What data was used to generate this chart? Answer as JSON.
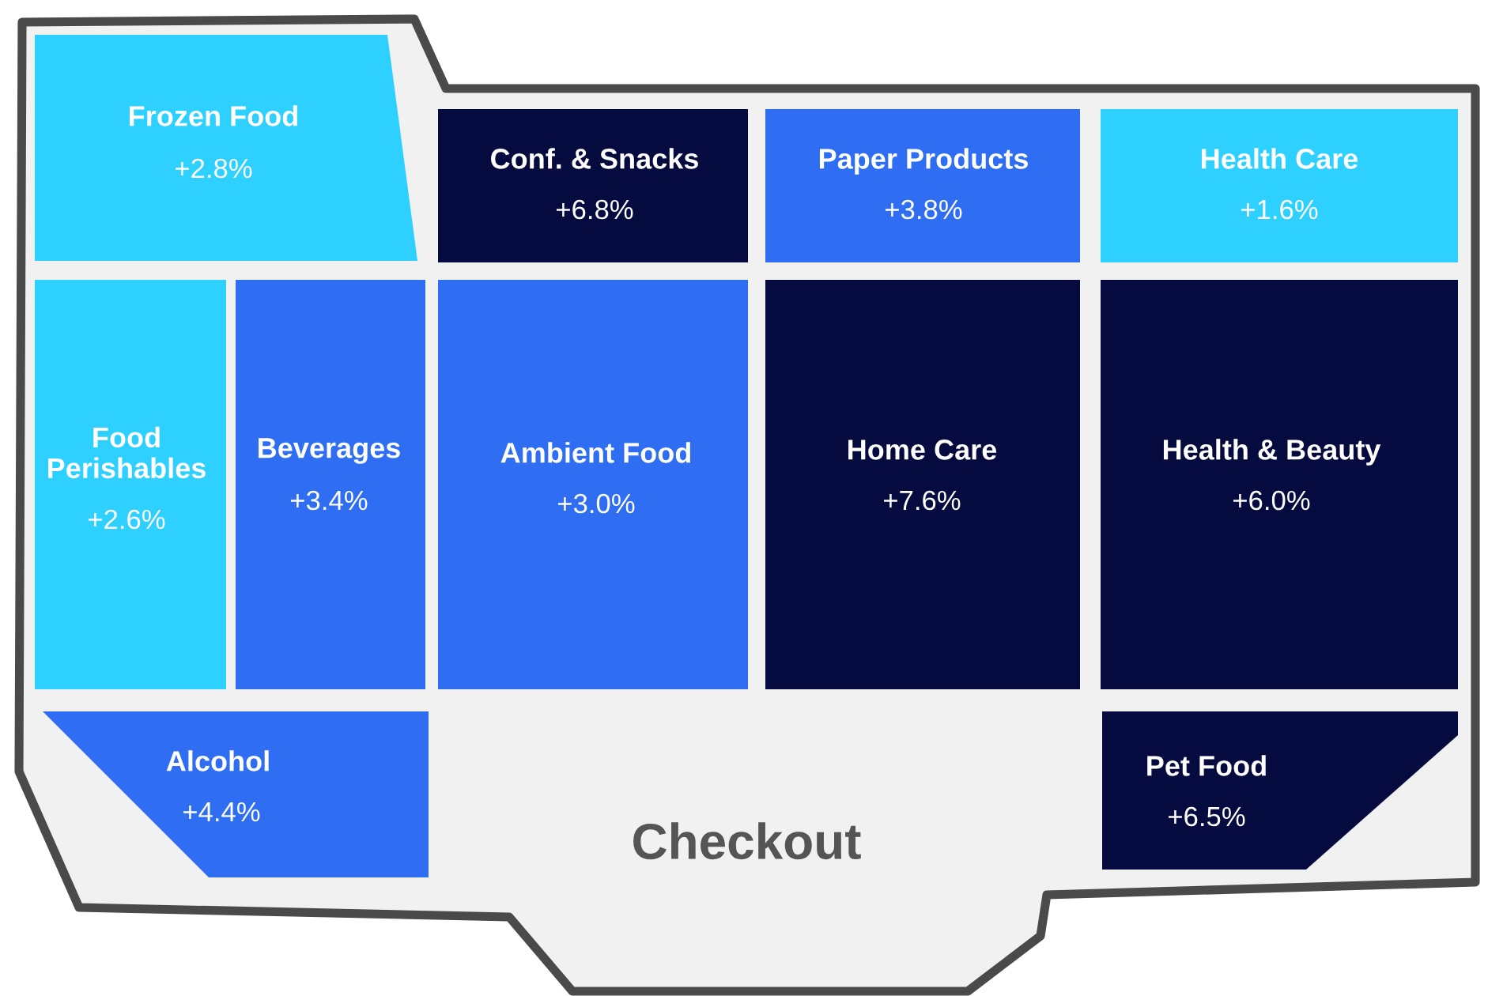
{
  "chart_data": {
    "type": "other",
    "categories": [
      "Frozen Food",
      "Conf. & Snacks",
      "Paper Products",
      "Health Care",
      "Food Perishables",
      "Beverages",
      "Ambient Food",
      "Home Care",
      "Health & Beauty",
      "Alcohol",
      "Pet Food"
    ],
    "values": [
      2.8,
      6.8,
      3.8,
      1.6,
      2.6,
      3.4,
      3.0,
      7.6,
      6.0,
      4.4,
      6.5
    ],
    "value_labels": [
      "+2.8%",
      "+6.8%",
      "+3.8%",
      "+1.6%",
      "+2.6%",
      "+3.4%",
      "+3.0%",
      "+7.6%",
      "+6.0%",
      "+4.4%",
      "+6.5%"
    ],
    "colors": [
      "#2ed0ff",
      "#060b3f",
      "#2f6ef2",
      "#2ed0ff",
      "#2ed0ff",
      "#2f6ef2",
      "#2f6ef2",
      "#060b3f",
      "#060b3f",
      "#2f6ef2",
      "#060b3f"
    ],
    "annotations": [
      "Checkout"
    ]
  }
}
